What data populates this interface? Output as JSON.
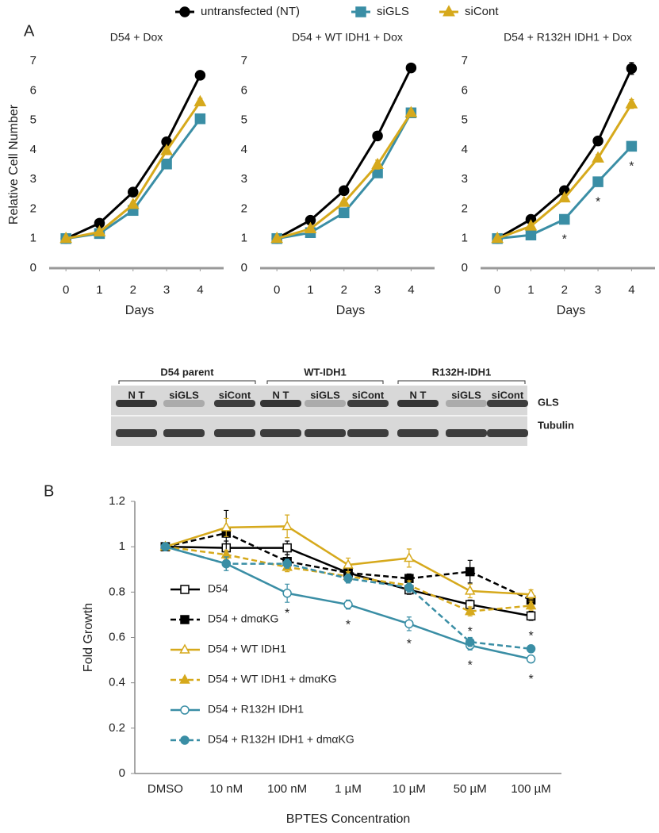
{
  "panels": [
    "A",
    "B"
  ],
  "blot": {
    "groups": [
      "D54 parent",
      "WT-IDH1",
      "R132H-IDH1"
    ],
    "lanes": [
      "N T",
      "siGLS",
      "siCont",
      "N T",
      "siGLS",
      "siCont",
      "N T",
      "siGLS",
      "siCont"
    ],
    "bands": [
      "GLS",
      "Tubulin"
    ]
  },
  "chart_data": [
    {
      "type": "line",
      "title": "D54 + Dox",
      "ylabel": "Relative Cell Number",
      "xlabel": "Days",
      "x": [
        0,
        1,
        2,
        3,
        4
      ],
      "xlim": [
        -0.5,
        4.7
      ],
      "xticks": [
        0,
        1,
        2,
        3,
        4
      ],
      "ylim": [
        0,
        7
      ],
      "yticks": [
        0,
        1,
        2,
        3,
        4,
        5,
        6,
        7
      ],
      "series": [
        {
          "name": "untransfected (NT)",
          "color": "#000000",
          "marker": "circle",
          "values": [
            1,
            1.52,
            2.57,
            4.27,
            6.52
          ],
          "errors": [
            0,
            0.05,
            0.15,
            0.12,
            0.12
          ]
        },
        {
          "name": "siGLS",
          "color": "#3a8ea5",
          "marker": "square",
          "values": [
            1,
            1.17,
            1.95,
            3.52,
            5.05
          ],
          "errors": [
            0,
            0.05,
            0.12,
            0.08,
            0.13
          ]
        },
        {
          "name": "siCont",
          "color": "#d6a91c",
          "marker": "triangle",
          "values": [
            1,
            1.22,
            2.15,
            3.97,
            5.62
          ],
          "errors": [
            0,
            0.04,
            0.1,
            0.1,
            0.12
          ]
        }
      ]
    },
    {
      "type": "line",
      "title": "D54 + WT IDH1 + Dox",
      "xlabel": "Days",
      "x": [
        0,
        1,
        2,
        3,
        4
      ],
      "xlim": [
        -0.5,
        4.7
      ],
      "xticks": [
        0,
        1,
        2,
        3,
        4
      ],
      "ylim": [
        0,
        7
      ],
      "yticks": [
        0,
        1,
        2,
        3,
        4,
        5,
        6,
        7
      ],
      "series": [
        {
          "color": "#000000",
          "marker": "circle",
          "values": [
            1,
            1.62,
            2.62,
            4.47,
            6.77
          ],
          "errors": [
            0,
            0.05,
            0.06,
            0.07,
            0.07
          ]
        },
        {
          "color": "#3a8ea5",
          "marker": "square",
          "values": [
            1,
            1.2,
            1.87,
            3.22,
            5.25
          ],
          "errors": [
            0,
            0.04,
            0.07,
            0.1,
            0.1
          ]
        },
        {
          "color": "#d6a91c",
          "marker": "triangle",
          "values": [
            1,
            1.33,
            2.22,
            3.5,
            5.25
          ],
          "errors": [
            0,
            0.04,
            0.08,
            0.15,
            0.1
          ]
        }
      ]
    },
    {
      "type": "line",
      "title": "D54 + R132H IDH1 + Dox",
      "xlabel": "Days",
      "x": [
        0,
        1,
        2,
        3,
        4
      ],
      "xlim": [
        -0.5,
        4.7
      ],
      "xticks": [
        0,
        1,
        2,
        3,
        4
      ],
      "ylim": [
        0,
        7
      ],
      "yticks": [
        0,
        1,
        2,
        3,
        4,
        5,
        6,
        7
      ],
      "series": [
        {
          "color": "#000000",
          "marker": "circle",
          "values": [
            1,
            1.65,
            2.62,
            4.3,
            6.75
          ],
          "errors": [
            0,
            0.06,
            0.08,
            0.06,
            0.2
          ]
        },
        {
          "color": "#3a8ea5",
          "marker": "square",
          "values": [
            1,
            1.12,
            1.65,
            2.92,
            4.12
          ],
          "errors": [
            0,
            0.04,
            0.08,
            0.15,
            0.12
          ]
        },
        {
          "color": "#d6a91c",
          "marker": "triangle",
          "values": [
            1,
            1.42,
            2.37,
            3.72,
            5.55
          ],
          "errors": [
            0,
            0.04,
            0.08,
            0.12,
            0.15
          ]
        }
      ],
      "annotations": [
        {
          "text": "*",
          "series": 1,
          "index": 2
        },
        {
          "text": "*",
          "series": 1,
          "index": 3
        },
        {
          "text": "*",
          "series": 1,
          "index": 4
        }
      ]
    },
    {
      "type": "line",
      "xlabel": "BPTES Concentration",
      "ylabel": "Fold Growth",
      "categories": [
        "DMSO",
        "10 nM",
        "100 nM",
        "1 µM",
        "10 µM",
        "50 µM",
        "100 µM"
      ],
      "ylim": [
        0,
        1.2
      ],
      "yticks": [
        0,
        0.2,
        0.4,
        0.6,
        0.8,
        1,
        1.2
      ],
      "series": [
        {
          "name": "D54",
          "color": "#000000",
          "marker": "square",
          "filled": false,
          "dashed": false,
          "values": [
            1,
            0.995,
            0.995,
            0.885,
            0.81,
            0.745,
            0.695
          ],
          "errors": [
            0,
            0.03,
            0.03,
            0.02,
            0.02,
            0.02,
            0.02
          ]
        },
        {
          "name": "D54 + dmαKG",
          "color": "#000000",
          "marker": "square",
          "filled": true,
          "dashed": true,
          "values": [
            1,
            1.06,
            0.935,
            0.885,
            0.86,
            0.89,
            0.765
          ],
          "errors": [
            0,
            0.1,
            0.03,
            0.02,
            0.02,
            0.05,
            0.02
          ]
        },
        {
          "name": "D54 + WT IDH1",
          "color": "#d6a91c",
          "marker": "triangle",
          "filled": false,
          "dashed": false,
          "values": [
            1,
            1.085,
            1.09,
            0.92,
            0.95,
            0.805,
            0.79
          ],
          "errors": [
            0,
            0.04,
            0.05,
            0.03,
            0.04,
            0.03,
            0.02
          ]
        },
        {
          "name": "D54 + WT IDH1 + dmαKG",
          "color": "#d6a91c",
          "marker": "triangle",
          "filled": true,
          "dashed": true,
          "values": [
            1,
            0.965,
            0.91,
            0.87,
            0.83,
            0.715,
            0.74
          ],
          "errors": [
            0,
            0.02,
            0.02,
            0.02,
            0.02,
            0.02,
            0.02
          ]
        },
        {
          "name": "D54 + R132H IDH1",
          "color": "#3a8ea5",
          "marker": "circle",
          "filled": false,
          "dashed": false,
          "values": [
            1,
            0.925,
            0.795,
            0.745,
            0.66,
            0.565,
            0.505
          ],
          "errors": [
            0,
            0.03,
            0.04,
            0.02,
            0.03,
            0.02,
            0.01
          ]
        },
        {
          "name": "D54 + R132H IDH1 + dmαKG",
          "color": "#3a8ea5",
          "marker": "circle",
          "filled": true,
          "dashed": true,
          "values": [
            1,
            0.925,
            0.925,
            0.86,
            0.82,
            0.58,
            0.55
          ],
          "errors": [
            0,
            0.03,
            0.02,
            0.02,
            0.02,
            0.02,
            0.01
          ]
        }
      ],
      "annotations": [
        {
          "text": "*",
          "series": 4,
          "index": 2
        },
        {
          "text": "*",
          "series": 4,
          "index": 3
        },
        {
          "text": "*",
          "series": 4,
          "index": 4
        },
        {
          "text": "*",
          "series": 3,
          "index": 5
        },
        {
          "text": "*",
          "series": 4,
          "index": 5
        },
        {
          "text": "*",
          "series": 0,
          "index": 6
        },
        {
          "text": "*",
          "series": 4,
          "index": 6
        }
      ]
    }
  ]
}
